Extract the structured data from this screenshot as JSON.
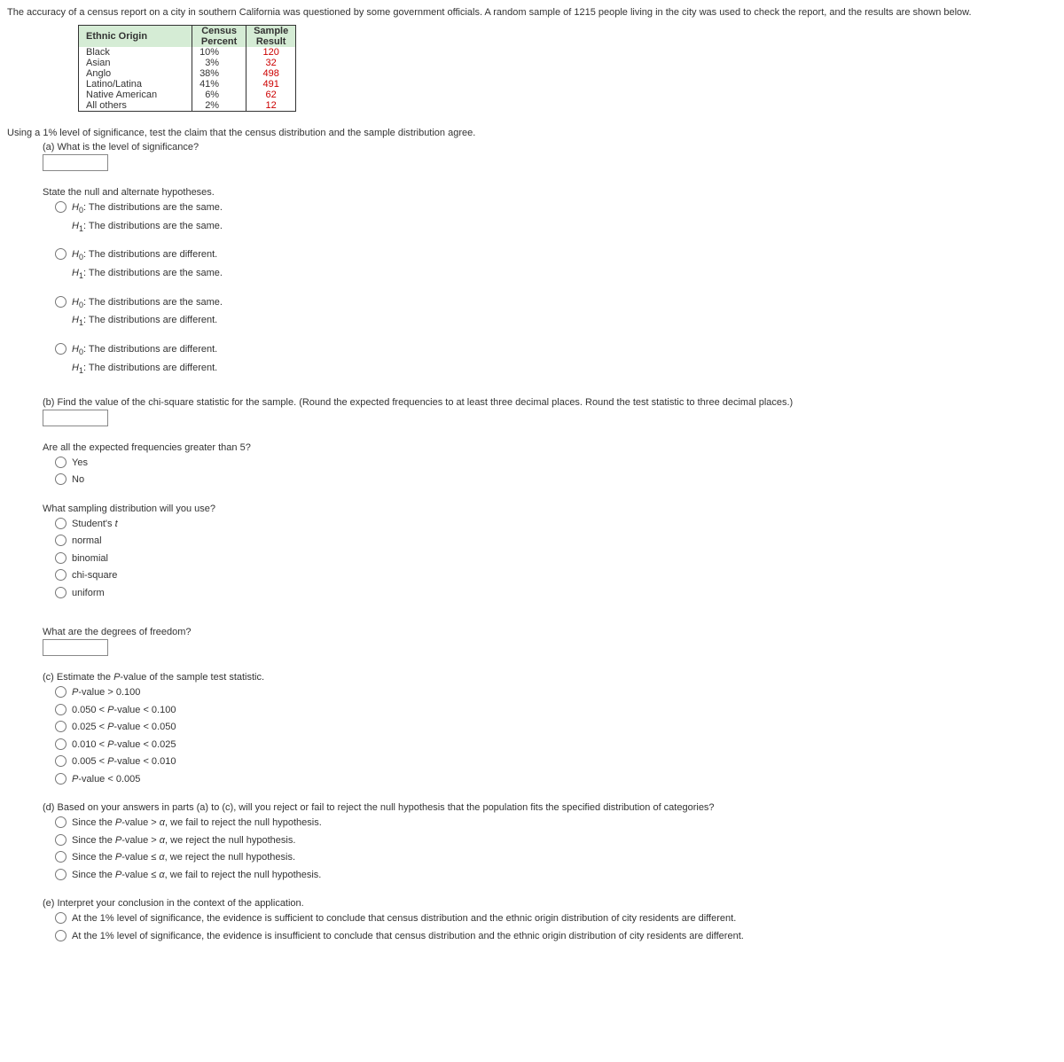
{
  "intro": "The accuracy of a census report on a city in southern California was questioned by some government officials. A random sample of 1215 people living in the city was used to check the report, and the results are shown below.",
  "table": {
    "headers": {
      "origin": "Ethnic Origin",
      "census_l1": "Census",
      "census_l2": "Percent",
      "sample_l1": "Sample",
      "sample_l2": "Result"
    },
    "rows": [
      {
        "origin": "Black",
        "census": "10%",
        "sample": "120"
      },
      {
        "origin": "Asian",
        "census": "3%",
        "sample": "32"
      },
      {
        "origin": "Anglo",
        "census": "38%",
        "sample": "498"
      },
      {
        "origin": "Latino/Latina",
        "census": "41%",
        "sample": "491"
      },
      {
        "origin": "Native American",
        "census": "6%",
        "sample": "62"
      },
      {
        "origin": "All others",
        "census": "2%",
        "sample": "12"
      }
    ]
  },
  "instruction": "Using a 1% level of significance, test the claim that the census distribution and the sample distribution agree.",
  "a": {
    "q": "(a) What is the level of significance?",
    "hyp_prompt": "State the null and alternate hypotheses.",
    "opts": [
      {
        "h0": ": The distributions are the same.",
        "h1": ": The distributions are the same."
      },
      {
        "h0": ": The distributions are different.",
        "h1": ": The distributions are the same."
      },
      {
        "h0": ": The distributions are the same.",
        "h1": ": The distributions are different."
      },
      {
        "h0": ": The distributions are different.",
        "h1": ": The distributions are different."
      }
    ]
  },
  "b": {
    "q": "(b) Find the value of the chi-square statistic for the sample. (Round the expected frequencies to at least three decimal places. Round the test statistic to three decimal places.)",
    "freq_q": "Are all the expected frequencies greater than 5?",
    "freq_opts": [
      "Yes",
      "No"
    ],
    "dist_q": "What sampling distribution will you use?",
    "dist_opts": [
      "Student's t",
      "normal",
      "binomial",
      "chi-square",
      "uniform"
    ],
    "df_q": "What are the degrees of freedom?"
  },
  "c": {
    "q": "(c) Estimate the P-value of the sample test statistic.",
    "opts": [
      "P-value > 0.100",
      "0.050 < P-value < 0.100",
      "0.025 < P-value < 0.050",
      "0.010 < P-value < 0.025",
      "0.005 < P-value < 0.010",
      "P-value < 0.005"
    ]
  },
  "d": {
    "q": "(d) Based on your answers in parts (a) to (c), will you reject or fail to reject the null hypothesis that the population fits the specified distribution of categories?",
    "opts": [
      "Since the P-value > α, we fail to reject the null hypothesis.",
      "Since the P-value > α, we reject the null hypothesis.",
      "Since the P-value ≤ α, we reject the null hypothesis.",
      "Since the P-value ≤ α, we fail to reject the null hypothesis."
    ]
  },
  "e": {
    "q": "(e) Interpret your conclusion in the context of the application.",
    "opts": [
      "At the 1% level of significance, the evidence is sufficient to conclude that census distribution and the ethnic origin distribution of city residents are different.",
      "At the 1% level of significance, the evidence is insufficient to conclude that census distribution and the ethnic origin distribution of city residents are different."
    ]
  }
}
